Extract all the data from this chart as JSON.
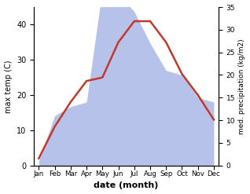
{
  "months": [
    "Jan",
    "Feb",
    "Mar",
    "Apr",
    "May",
    "Jun",
    "Jul",
    "Aug",
    "Sep",
    "Oct",
    "Nov",
    "Dec"
  ],
  "max_temp": [
    2,
    11,
    18,
    24,
    25,
    35,
    41,
    41,
    35,
    26,
    20,
    13
  ],
  "precipitation": [
    1,
    11,
    13,
    14,
    39,
    38,
    34,
    27,
    21,
    20,
    15,
    14
  ],
  "temp_color": "#c0392b",
  "precip_fill_color": "#b0bce8",
  "temp_ylim": [
    0,
    45
  ],
  "precip_ylim": [
    0,
    35
  ],
  "temp_yticks": [
    0,
    10,
    20,
    30,
    40
  ],
  "precip_yticks": [
    0,
    5,
    10,
    15,
    20,
    25,
    30,
    35
  ],
  "ylabel_left": "max temp (C)",
  "ylabel_right": "med. precipitation (kg/m2)",
  "xlabel": "date (month)",
  "background_color": "#ffffff",
  "figsize": [
    3.18,
    2.47
  ],
  "dpi": 100
}
